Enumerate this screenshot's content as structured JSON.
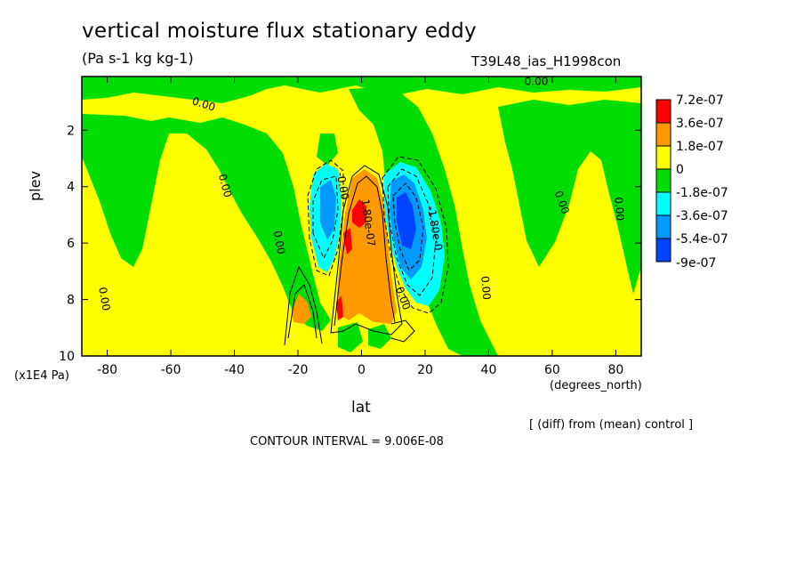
{
  "title": "vertical moisture flux stationary eddy",
  "units": "(Pa s-1 kg kg-1)",
  "run_label": "T39L48_ias_H1998con",
  "diff_note": "[ (diff) from (mean) control ]",
  "contour_interval": "CONTOUR INTERVAL = 9.006E-08",
  "chart_data": {
    "type": "heatmap",
    "title": "vertical moisture flux stationary eddy",
    "subtitle": "(Pa s-1 kg kg-1)",
    "xlabel": "lat",
    "xunits": "(degrees_north)",
    "ylabel": "plev",
    "yunits": "(x1E4 Pa)",
    "xlim": [
      -88,
      88
    ],
    "ylim": [
      10,
      0.1
    ],
    "x_ticks": [
      -80,
      -60,
      -40,
      -20,
      0,
      20,
      40,
      60,
      80
    ],
    "x_tick_labels": [
      "-80",
      "-60",
      "-40",
      "-20",
      "0",
      "20",
      "40",
      "60",
      "80"
    ],
    "y_ticks": [
      2,
      4,
      6,
      8,
      10
    ],
    "y_tick_labels": [
      "2",
      "4",
      "6",
      "8",
      "10"
    ],
    "legend": {
      "placement": "right",
      "labels": [
        "7.2e-07",
        "3.6e-07",
        "1.8e-07",
        "0",
        "-1.8e-07",
        "-3.6e-07",
        "-5.4e-07",
        "-9e-07"
      ],
      "colors": [
        "#ff0000",
        "#ff9900",
        "#ffff00",
        "#00dd00",
        "#00ffff",
        "#0099ff",
        "#0044ff"
      ]
    },
    "contour_labels": [
      {
        "text": "0.00",
        "x": -50,
        "y": 1.2,
        "rotate": 18
      },
      {
        "text": "0.00",
        "x": 55,
        "y": 0.4,
        "rotate": 0
      },
      {
        "text": "0.00",
        "x": -44,
        "y": 4.0,
        "rotate": 75
      },
      {
        "text": "0.00",
        "x": -27,
        "y": 6.0,
        "rotate": 80
      },
      {
        "text": "0.00",
        "x": -82,
        "y": 8.0,
        "rotate": 80
      },
      {
        "text": "-0.00",
        "x": -7,
        "y": 4.0,
        "rotate": 80
      },
      {
        "text": "1.80e-07",
        "x": 1,
        "y": 5.3,
        "rotate": 82
      },
      {
        "text": "-1.80e-0",
        "x": 22,
        "y": 5.5,
        "rotate": 80
      },
      {
        "text": "0.00",
        "x": 12,
        "y": 8.0,
        "rotate": 70
      },
      {
        "text": "0.00",
        "x": 38,
        "y": 7.6,
        "rotate": 85
      },
      {
        "text": "0.00",
        "x": 62,
        "y": 4.6,
        "rotate": 70
      },
      {
        "text": "0.00",
        "x": 80,
        "y": 4.8,
        "rotate": 85
      }
    ],
    "colors": {
      "pos_high": "#ff0000",
      "pos_mid": "#ff9900",
      "pos_low": "#ffff00",
      "neg_low": "#00dd00",
      "neg_mid": "#00ffff",
      "neg_high": "#0099ff",
      "neg_max": "#0044ff"
    }
  }
}
